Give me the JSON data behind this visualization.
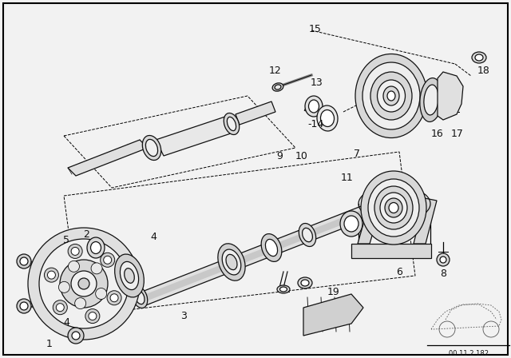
{
  "fig_width": 6.4,
  "fig_height": 4.48,
  "dpi": 100,
  "background_color": "#f2f2f2",
  "line_color": "#111111",
  "text_color": "#111111"
}
